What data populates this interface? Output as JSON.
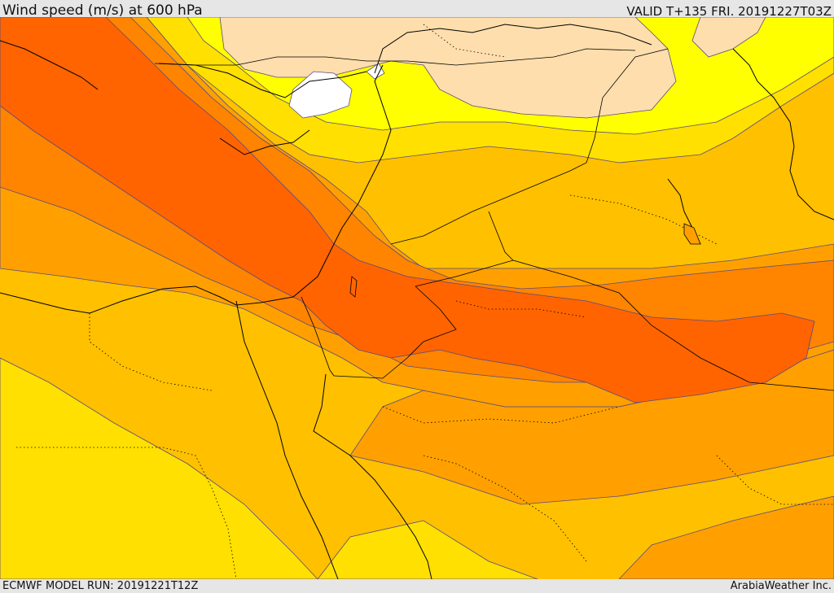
{
  "header": {
    "title": "Wind speed (m/s) at 600 hPa",
    "valid": "VALID T+135 FRI. 20191227T03Z"
  },
  "footer": {
    "model_run": "ECMWF MODEL RUN: 20191221T12Z",
    "credit": "ArabiaWeather Inc."
  },
  "palette": {
    "calm": "#ffffff",
    "band_1": "#ffdead",
    "band_2": "#ffff00",
    "band_3": "#ffe000",
    "band_4": "#ffc000",
    "band_5": "#ffa000",
    "band_6": "#ff8400",
    "band_7": "#ff6400",
    "contour": "#5a4a80",
    "coast": "#000000"
  }
}
